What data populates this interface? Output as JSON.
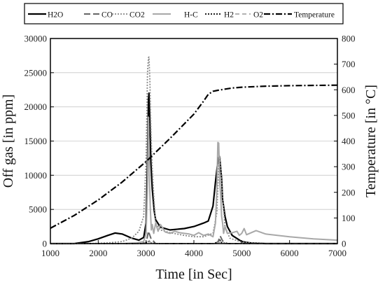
{
  "chart_data": {
    "type": "line",
    "title": "",
    "xlabel": "Time [in Sec]",
    "ylabel_left": "Off gas [in ppm]",
    "ylabel_right": "Temperature [in °C]",
    "xlim": [
      1000,
      7000
    ],
    "ylim_left": [
      0,
      30000
    ],
    "ylim_right": [
      0,
      800
    ],
    "xticks": [
      1000,
      2000,
      3000,
      4000,
      5000,
      6000,
      7000
    ],
    "yticks_left": [
      0,
      5000,
      10000,
      15000,
      20000,
      25000,
      30000
    ],
    "yticks_right": [
      0,
      100,
      200,
      300,
      400,
      500,
      600,
      700,
      800
    ],
    "grid": true,
    "legend_position": "top",
    "series": [
      {
        "name": "H2O",
        "axis": "left",
        "color": "#000000",
        "dash": "",
        "width": 2.2,
        "x": [
          1000,
          1500,
          1800,
          2000,
          2200,
          2350,
          2500,
          2700,
          2850,
          2950,
          3000,
          3030,
          3050,
          3060,
          3080,
          3100,
          3130,
          3170,
          3200,
          3300,
          3500,
          3800,
          4000,
          4200,
          4300,
          4400,
          4450,
          4500,
          4530,
          4550,
          4580,
          4600,
          4650,
          4700,
          4800,
          5000,
          5200,
          5500,
          6000,
          6500,
          7000
        ],
        "y": [
          0,
          0,
          300,
          700,
          1200,
          1550,
          1400,
          800,
          500,
          900,
          3000,
          12000,
          21000,
          22000,
          18000,
          12000,
          8000,
          4800,
          3500,
          2400,
          2000,
          2200,
          2500,
          3000,
          3300,
          5500,
          9000,
          12000,
          12800,
          11800,
          9500,
          6500,
          4000,
          2500,
          1200,
          300,
          80,
          0,
          0,
          0,
          0
        ]
      },
      {
        "name": "CO",
        "axis": "left",
        "color": "#666666",
        "dash": "9,4",
        "width": 2,
        "x": [
          1000,
          2900,
          3000,
          3050,
          3100,
          3200,
          4400,
          4500,
          4550,
          4600,
          4700,
          7000
        ],
        "y": [
          0,
          0,
          100,
          1800,
          800,
          0,
          0,
          200,
          1100,
          400,
          0,
          0
        ]
      },
      {
        "name": "CO2",
        "axis": "left",
        "color": "#888888",
        "dash": "2,2",
        "width": 1.8,
        "x": [
          1000,
          1800,
          2200,
          2500,
          2700,
          2850,
          2950,
          3000,
          3030,
          3050,
          3060,
          3080,
          3100,
          3130,
          3170,
          3200,
          3300,
          3500,
          3800,
          4000,
          4200,
          4400,
          4480,
          4520,
          4550,
          4600,
          4650,
          4750,
          5000,
          5500,
          7000
        ],
        "y": [
          0,
          0,
          100,
          300,
          800,
          1800,
          4000,
          12000,
          25000,
          27200,
          27300,
          24000,
          17000,
          11000,
          6000,
          3000,
          2000,
          1600,
          1200,
          1000,
          1000,
          1500,
          4500,
          11500,
          12500,
          7000,
          2500,
          800,
          200,
          0,
          0
        ]
      },
      {
        "name": "H-C",
        "axis": "left",
        "color": "#a8a8a8",
        "dash": "",
        "width": 2,
        "x": [
          1000,
          2000,
          2500,
          2800,
          2950,
          3000,
          3030,
          3050,
          3070,
          3090,
          3110,
          3130,
          3160,
          3200,
          3250,
          3300,
          3400,
          3500,
          3600,
          3700,
          3800,
          3900,
          4000,
          4100,
          4200,
          4300,
          4400,
          4450,
          4480,
          4500,
          4520,
          4540,
          4560,
          4580,
          4600,
          4620,
          4650,
          4700,
          4800,
          4900,
          4950,
          5000,
          5050,
          5100,
          5300,
          5500,
          6000,
          6500,
          7000
        ],
        "y": [
          0,
          0,
          0,
          100,
          300,
          1500,
          8000,
          18500,
          10000,
          5000,
          2000,
          2800,
          1500,
          3000,
          1800,
          2800,
          1700,
          1500,
          1800,
          1600,
          1500,
          1400,
          1200,
          1600,
          1200,
          1400,
          1000,
          3000,
          8000,
          14800,
          14700,
          9000,
          7000,
          4000,
          3000,
          1500,
          2500,
          1500,
          1600,
          1800,
          1200,
          1500,
          2200,
          1300,
          1900,
          1400,
          1000,
          700,
          500
        ]
      },
      {
        "name": "H2",
        "axis": "left",
        "color": "#000000",
        "dash": "2,2",
        "width": 1.8,
        "x": [
          1000,
          2900,
          3040,
          3060,
          3080,
          3200,
          4400,
          4520,
          4550,
          4580,
          4700,
          7000
        ],
        "y": [
          0,
          0,
          150,
          500,
          150,
          0,
          0,
          200,
          500,
          150,
          0,
          0
        ]
      },
      {
        "name": "O2",
        "axis": "left",
        "color": "#a8a8a8",
        "dash": "6,4",
        "width": 1.8,
        "x": [
          1000,
          3000,
          3060,
          3150,
          4450,
          4550,
          4650,
          7000
        ],
        "y": [
          0,
          0,
          300,
          0,
          0,
          250,
          0,
          0
        ]
      },
      {
        "name": "Temperature",
        "axis": "right",
        "color": "#000000",
        "dash": "9,3,2,3",
        "width": 2.2,
        "x": [
          1000,
          1500,
          2000,
          2500,
          3000,
          3500,
          4000,
          4200,
          4300,
          4400,
          4500,
          4800,
          5000,
          5500,
          6000,
          6500,
          7000
        ],
        "y": [
          60,
          110,
          170,
          240,
          320,
          410,
          505,
          555,
          582,
          594,
          598,
          607,
          610,
          614,
          616,
          617,
          618
        ]
      }
    ]
  }
}
